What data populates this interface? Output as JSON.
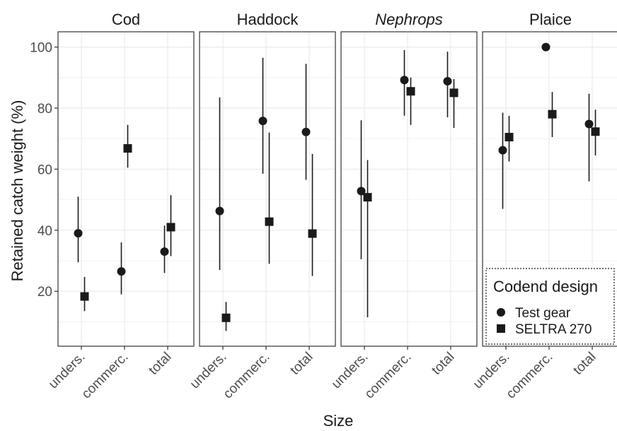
{
  "chart_data": {
    "type": "scatter",
    "xlabel": "Size",
    "ylabel": "Retained catch weight (%)",
    "ylim": [
      2,
      105
    ],
    "y_ticks": [
      20,
      40,
      60,
      80,
      100
    ],
    "categories": [
      "unders.",
      "commerc.",
      "total"
    ],
    "grid": true,
    "legend_position": "bottom-right",
    "legend": {
      "title": "Codend design",
      "entries": [
        {
          "name": "Test gear",
          "marker": "circle"
        },
        {
          "name": "SELTRA 270",
          "marker": "square"
        }
      ]
    },
    "colors": {
      "points": "#1a1a1a",
      "grid": "#ebebeb",
      "panel_border": "#333333",
      "text": "#4d4d4d"
    },
    "panels": [
      {
        "title": "Cod",
        "italic": false,
        "series": [
          {
            "name": "Test gear",
            "values": [
              39,
              26.5,
              33
            ],
            "lower": [
              29.5,
              19,
              26
            ],
            "upper": [
              51,
              36,
              41.5
            ]
          },
          {
            "name": "SELTRA 270",
            "values": [
              18.3,
              66.8,
              41
            ],
            "lower": [
              13.5,
              60.5,
              31.5
            ],
            "upper": [
              24.7,
              74.5,
              51.5
            ]
          }
        ]
      },
      {
        "title": "Haddock",
        "italic": false,
        "series": [
          {
            "name": "Test gear",
            "values": [
              46.3,
              75.8,
              72.2
            ],
            "lower": [
              27,
              58.5,
              56.5
            ],
            "upper": [
              83.5,
              96.5,
              94.5
            ]
          },
          {
            "name": "SELTRA 270",
            "values": [
              11.3,
              42.8,
              38.9
            ],
            "lower": [
              7,
              29,
              25
            ],
            "upper": [
              16.5,
              72,
              65
            ]
          }
        ]
      },
      {
        "title": "Nephrops",
        "italic": true,
        "series": [
          {
            "name": "Test gear",
            "values": [
              52.8,
              89.2,
              88.8
            ],
            "lower": [
              30.5,
              77.5,
              77
            ],
            "upper": [
              76,
              99,
              98.5
            ]
          },
          {
            "name": "SELTRA 270",
            "values": [
              50.8,
              85.5,
              85
            ],
            "lower": [
              11.5,
              74.5,
              73.5
            ],
            "upper": [
              63,
              90,
              89.5
            ]
          }
        ]
      },
      {
        "title": "Plaice",
        "italic": false,
        "series": [
          {
            "name": "Test gear",
            "values": [
              66.2,
              100,
              74.8
            ],
            "lower": [
              47,
              100,
              56
            ],
            "upper": [
              78.5,
              100,
              84.7
            ]
          },
          {
            "name": "SELTRA 270",
            "values": [
              70.5,
              78,
              72.3
            ],
            "lower": [
              62.5,
              70.5,
              64.5
            ],
            "upper": [
              77.5,
              85.3,
              79.5
            ]
          }
        ]
      }
    ]
  }
}
